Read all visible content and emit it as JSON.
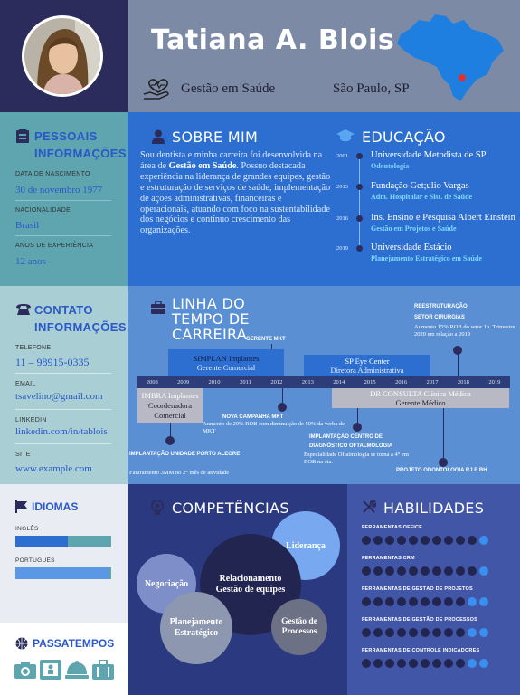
{
  "header": {
    "name": "Tatiana A. Blois",
    "role": "Gestão em Saúde",
    "location": "São Paulo, SP"
  },
  "personal": {
    "title": "PESSOAIS INFORMAÇÕES",
    "birth_label": "DATA DE NASCIMENTO",
    "birth_value": "30 de novembro 1977",
    "nat_label": "NACIONALIDADE",
    "nat_value": "Brasil",
    "exp_label": "ANOS DE EXPERIÊNCIA",
    "exp_value": "12 anos"
  },
  "about": {
    "title": "SOBRE MIM",
    "text_1": "Sou dentista e minha carreira foi desenvolvida na área de ",
    "text_bold": "Gestão em Saúde",
    "text_2": ". Possuo destacada experiência na liderança de grandes equipes, gestão e estruturação de serviços de saúde, implementação de ações administrativas, financeiras e operacionais, atuando com foco na sustentabilidade dos negócios e contínuo crescimento das organizações."
  },
  "education": {
    "title": "EDUCAÇÃO",
    "items": [
      {
        "year": "2001",
        "school": "Universidade Metodista de SP",
        "course": "Odontologia"
      },
      {
        "year": "2013",
        "school": "Fundação Get;ulio Vargas",
        "course": "Adm. Hospitalar e Sist. de Saúde"
      },
      {
        "year": "2016",
        "school": "Ins. Ensino e Pesquisa Albert Einstein",
        "course": "Gestão em Projetos e Saúde"
      },
      {
        "year": "2019",
        "school": "Universidade Estácio",
        "course": "Planejamento Estratégico em Saúde"
      }
    ]
  },
  "contact": {
    "title": "CONTATO INFORMAÇÕES",
    "phone_label": "TELEFONE",
    "phone_value": "11 – 98915-0335",
    "email_label": "EMAIL",
    "email_value": "tsavelino@gmail.com",
    "linkedin_label": "LINKEDIN",
    "linkedin_value": "linkedin.com/in/tablois",
    "site_label": "SITE",
    "site_value": "www.example.com"
  },
  "timeline": {
    "title": "LINHA DO TEMPO DE CARREIRA",
    "years": [
      "2008",
      "2009",
      "2010",
      "2011",
      "2012",
      "2013",
      "2014",
      "2015",
      "2016",
      "2017",
      "2018",
      "2019"
    ],
    "jobs": {
      "simplan_name": "SIMPLAN Implantes",
      "simplan_role": "Gerente Comercial",
      "sp_name": "SP Eye Center",
      "sp_role": "Diretora Administrativa",
      "imbra_name": "IMBRA Implantes",
      "imbra_role": "Coordenadora Comercial",
      "dr_name": "DR CONSULTA Clínica Médica",
      "dr_role": "Gerente Médico"
    },
    "events": {
      "gerente_mkt": "GERENTE MKT",
      "reestr_title": "REESTRUTURAÇÃO SETOR CIRURGIAS",
      "reestr_desc": "Aumento 15% ROB do setor 1o. Trimestre 2020 em relação a 2019",
      "nova_title": "NOVA CAMPANHA MKT",
      "nova_desc": "Aumento de 20% ROB com diminuição de 50% da verba de MKT",
      "impl_title": "IMPLANTAÇÃO UNIDADE PORTO ALEGRE",
      "impl_desc": "Faturamento 3MM no 2° mês de atividade",
      "cdo_title": "IMPLANTAÇÃO CENTRO DE DIAGNÓSTICO OFTALMOLOGIA",
      "cdo_desc": "Especialidade Oftalmologia se torna a 4° em ROB na cia.",
      "proj_title": "PROJETO ODONTOLOGIA RJ E BH"
    }
  },
  "languages": {
    "title": "IDIOMAS",
    "items": [
      {
        "name": "INGLÊS",
        "level": 0.55
      },
      {
        "name": "PORTUGUÊS",
        "level": 0.97
      }
    ]
  },
  "hobbies": {
    "title": "PASSATEMPOS",
    "icons": [
      "camera-icon",
      "board-game-icon",
      "cooking-icon",
      "suitcase-icon"
    ]
  },
  "competencies": {
    "title": "COMPETÊNCIAS",
    "items": [
      "Liderança",
      "Negociação",
      "Relacionamento Gestão de equipes",
      "Planejamento Estratégico",
      "Gestão de Processos"
    ]
  },
  "skills": {
    "title": "HABILIDADES",
    "items": [
      {
        "name": "FERRAMENTAS OFFICE",
        "level": 10,
        "total": 11
      },
      {
        "name": "FERRAMENTAS CRM",
        "level": 10,
        "total": 11
      },
      {
        "name": "FERRAMENTAS DE GESTÃO DE PROJETOS",
        "level": 9,
        "total": 11
      },
      {
        "name": "FERRAMENTAS DE GESTÃO DE PROCESSOS",
        "level": 9,
        "total": 11
      },
      {
        "name": "FERRAMENTAS DE CONTROLE INDICADORES",
        "level": 9,
        "total": 11
      }
    ]
  },
  "colors": {
    "navy": "#2b2c5c",
    "header": "#7d8aa6",
    "teal": "#5ea5b0",
    "blue": "#2d6fd0",
    "competencias_bg": "#2b3a80",
    "skills_bg": "#4156a6"
  }
}
